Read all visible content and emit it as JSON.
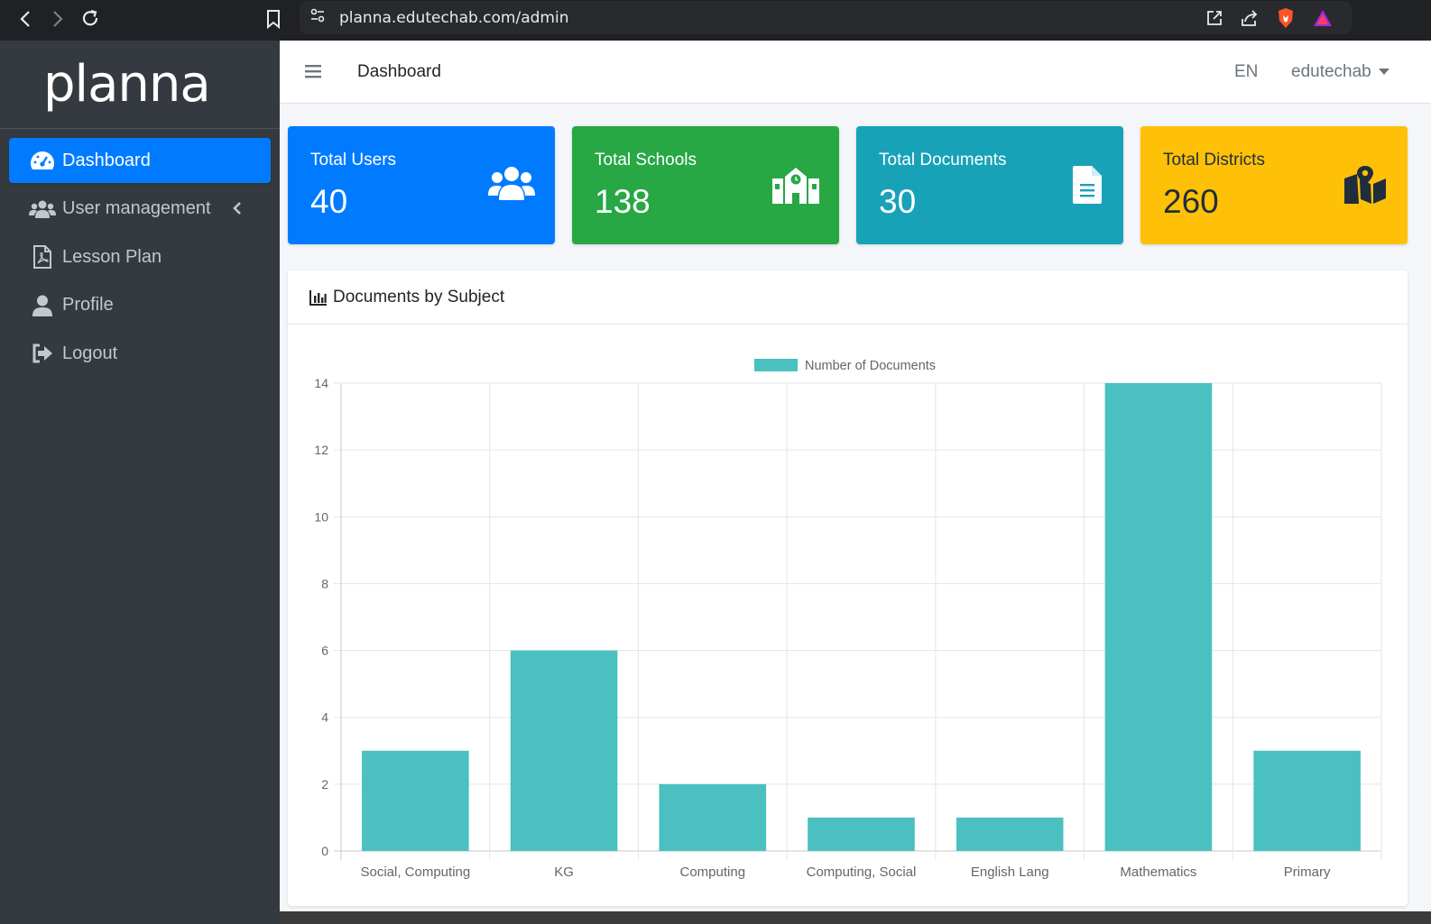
{
  "browser": {
    "url": "planna.edutechab.com/admin"
  },
  "sidebar": {
    "brand": "planna",
    "items": [
      {
        "label": "Dashboard",
        "icon": "tachometer-icon"
      },
      {
        "label": "User management",
        "icon": "users-icon"
      },
      {
        "label": "Lesson Plan",
        "icon": "pdf-file-icon"
      },
      {
        "label": "Profile",
        "icon": "user-icon"
      },
      {
        "label": "Logout",
        "icon": "sign-out-icon"
      }
    ]
  },
  "topbar": {
    "title": "Dashboard",
    "lang": "EN",
    "user": "edutechab"
  },
  "stats": [
    {
      "label": "Total Users",
      "value": "40",
      "color": "#007bff",
      "icon": "users-icon"
    },
    {
      "label": "Total Schools",
      "value": "138",
      "color": "#28a745",
      "icon": "school-icon"
    },
    {
      "label": "Total Documents",
      "value": "30",
      "color": "#17a2b8",
      "icon": "document-icon"
    },
    {
      "label": "Total Districts",
      "value": "260",
      "color": "#ffc107",
      "icon": "map-icon"
    }
  ],
  "card": {
    "title": "Documents by Subject"
  },
  "chart_data": {
    "type": "bar",
    "categories": [
      "Social, Computing",
      "KG",
      "Computing",
      "Computing, Social",
      "English Lang",
      "Mathematics",
      "Primary"
    ],
    "series": [
      {
        "name": "Number of Documents",
        "values": [
          3,
          6,
          2,
          1,
          1,
          14,
          3
        ],
        "color": "#4bc0c0"
      }
    ],
    "ylim": [
      0,
      14
    ],
    "yticks": [
      0,
      2,
      4,
      6,
      8,
      10,
      12,
      14
    ],
    "legend": "top",
    "grid": true
  }
}
